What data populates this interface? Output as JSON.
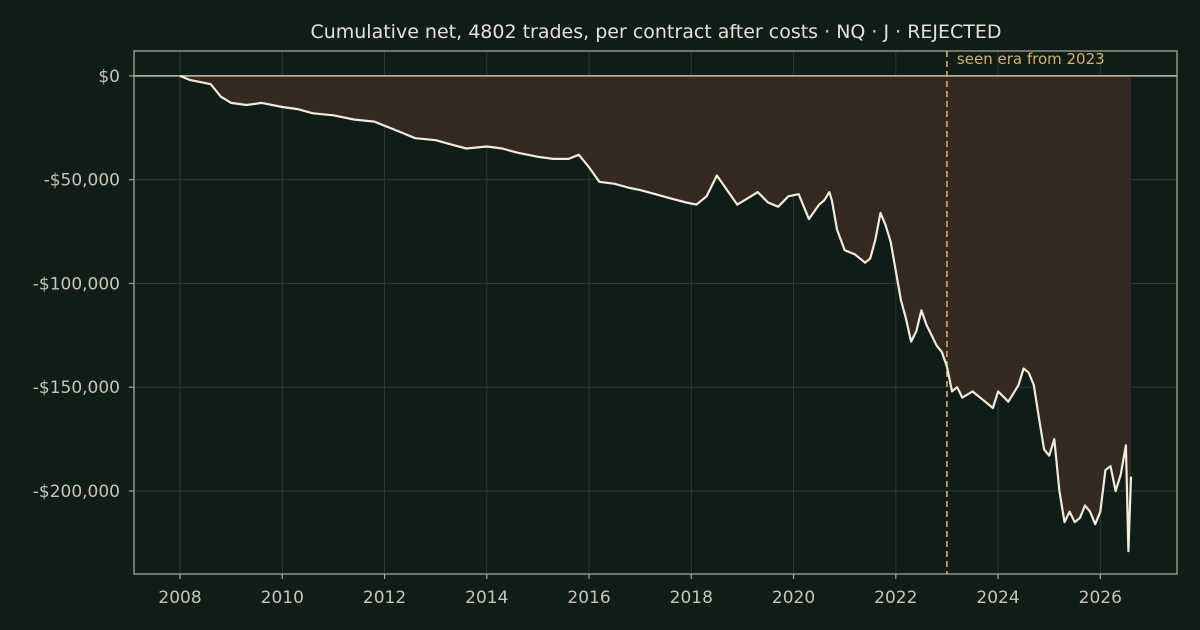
{
  "chart_data": {
    "type": "area",
    "title": "Cumulative net, 4802 trades, per contract after costs  ·  NQ · J · REJECTED",
    "xlabel": "",
    "ylabel": "",
    "xlim": [
      2007.1,
      2027.5
    ],
    "ylim": [
      -240000,
      12000
    ],
    "x_ticks": [
      {
        "value": 2008,
        "label": "2008"
      },
      {
        "value": 2010,
        "label": "2010"
      },
      {
        "value": 2012,
        "label": "2012"
      },
      {
        "value": 2014,
        "label": "2014"
      },
      {
        "value": 2016,
        "label": "2016"
      },
      {
        "value": 2018,
        "label": "2018"
      },
      {
        "value": 2020,
        "label": "2020"
      },
      {
        "value": 2022,
        "label": "2022"
      },
      {
        "value": 2024,
        "label": "2024"
      },
      {
        "value": 2026,
        "label": "2026"
      }
    ],
    "y_ticks": [
      {
        "value": 0,
        "label": "$0"
      },
      {
        "value": -50000,
        "label": "-$50,000"
      },
      {
        "value": -100000,
        "label": "-$100,000"
      },
      {
        "value": -150000,
        "label": "-$150,000"
      },
      {
        "value": -200000,
        "label": "-$200,000"
      }
    ],
    "grid": true,
    "zero_line": 0,
    "annotation": {
      "x": 2023.0,
      "label": "seen era from 2023"
    },
    "series": [
      {
        "x": [
          2008.0,
          2008.2,
          2008.4,
          2008.6,
          2008.8,
          2009.0,
          2009.3,
          2009.6,
          2010.0,
          2010.3,
          2010.6,
          2011.0,
          2011.4,
          2011.8,
          2012.0,
          2012.3,
          2012.6,
          2013.0,
          2013.3,
          2013.6,
          2014.0,
          2014.3,
          2014.6,
          2015.0,
          2015.3,
          2015.6,
          2015.8,
          2016.0,
          2016.2,
          2016.5,
          2016.8,
          2017.0,
          2017.3,
          2017.6,
          2017.9,
          2018.1,
          2018.3,
          2018.5,
          2018.7,
          2018.9,
          2019.1,
          2019.3,
          2019.5,
          2019.7,
          2019.9,
          2020.1,
          2020.3,
          2020.5,
          2020.6,
          2020.7,
          2020.75,
          2020.85,
          2021.0,
          2021.2,
          2021.4,
          2021.5,
          2021.6,
          2021.7,
          2021.8,
          2021.9,
          2022.0,
          2022.1,
          2022.2,
          2022.3,
          2022.4,
          2022.5,
          2022.6,
          2022.7,
          2022.8,
          2022.9,
          2023.0,
          2023.1,
          2023.2,
          2023.3,
          2023.5,
          2023.7,
          2023.9,
          2024.0,
          2024.2,
          2024.4,
          2024.5,
          2024.6,
          2024.7,
          2024.8,
          2024.9,
          2025.0,
          2025.1,
          2025.2,
          2025.3,
          2025.4,
          2025.5,
          2025.6,
          2025.7,
          2025.8,
          2025.9,
          2026.0,
          2026.1,
          2026.2,
          2026.3,
          2026.4,
          2026.5,
          2026.55,
          2026.6
        ],
        "y": [
          0,
          -2000,
          -3000,
          -4000,
          -10000,
          -13000,
          -14000,
          -13000,
          -15000,
          -16000,
          -18000,
          -19000,
          -21000,
          -22000,
          -24000,
          -27000,
          -30000,
          -31000,
          -33000,
          -35000,
          -34000,
          -35000,
          -37000,
          -39000,
          -40000,
          -40000,
          -38000,
          -44000,
          -51000,
          -52000,
          -54000,
          -55000,
          -57000,
          -59000,
          -61000,
          -62000,
          -58000,
          -48000,
          -55000,
          -62000,
          -59000,
          -56000,
          -61000,
          -63000,
          -58000,
          -57000,
          -69000,
          -62000,
          -60000,
          -56000,
          -60000,
          -74000,
          -84000,
          -86000,
          -90000,
          -88000,
          -79000,
          -66000,
          -72000,
          -80000,
          -94000,
          -108000,
          -117000,
          -128000,
          -123000,
          -113000,
          -120000,
          -125000,
          -130000,
          -133000,
          -140000,
          -152000,
          -150000,
          -155000,
          -152000,
          -156000,
          -160000,
          -152000,
          -157000,
          -149000,
          -141000,
          -143000,
          -149000,
          -165000,
          -180000,
          -183000,
          -175000,
          -200000,
          -215000,
          -210000,
          -215000,
          -213000,
          -207000,
          -210000,
          -216000,
          -210000,
          -190000,
          -188000,
          -200000,
          -192000,
          -178000,
          -229000,
          -193000
        ]
      }
    ]
  }
}
